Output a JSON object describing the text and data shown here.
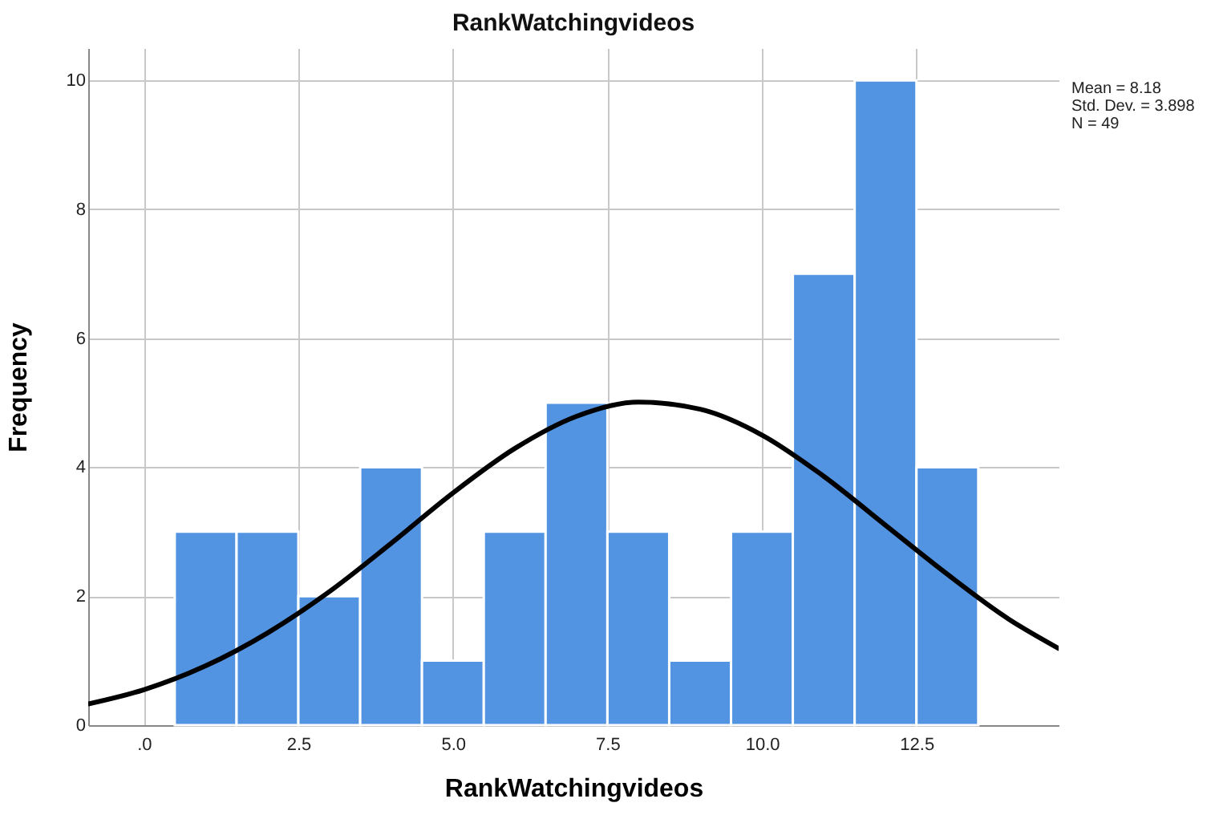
{
  "chart_data": {
    "type": "histogram",
    "title": "RankWatchingvideos",
    "xlabel": "RankWatchingvideos",
    "ylabel": "Frequency",
    "bins": [
      0.5,
      1.5,
      2.5,
      3.5,
      4.5,
      5.5,
      6.5,
      7.5,
      8.5,
      9.5,
      10.5,
      11.5,
      12.5,
      13.5
    ],
    "values": [
      3,
      3,
      2,
      4,
      1,
      3,
      5,
      3,
      1,
      3,
      7,
      10,
      4
    ],
    "color": "#5294e2",
    "series": [
      {
        "type": "line",
        "color": "#000000",
        "x": [
          -0.9,
          0,
          1,
          2,
          3,
          4,
          5,
          6,
          7,
          8,
          9,
          10,
          11,
          12,
          13,
          14,
          14.8
        ],
        "values": [
          0.33,
          0.55,
          0.92,
          1.43,
          2.07,
          2.82,
          3.6,
          4.29,
          4.79,
          5.01,
          4.9,
          4.5,
          3.86,
          3.1,
          2.34,
          1.64,
          1.19
        ]
      }
    ],
    "xlim": [
      -0.9,
      14.8
    ],
    "xticks": [
      {
        "value": 0,
        "label": ".0"
      },
      2.5,
      {
        "value": 5,
        "label": "5.0"
      },
      7.5,
      {
        "value": 10,
        "label": "10.0"
      },
      12.5
    ],
    "ylim": [
      0,
      10.5
    ],
    "yticks": [
      0,
      2,
      4,
      6,
      8,
      10
    ],
    "grid": true,
    "annotations": [
      "Mean = 8.18",
      "Std. Dev. = 3.898",
      "N = 49"
    ]
  }
}
